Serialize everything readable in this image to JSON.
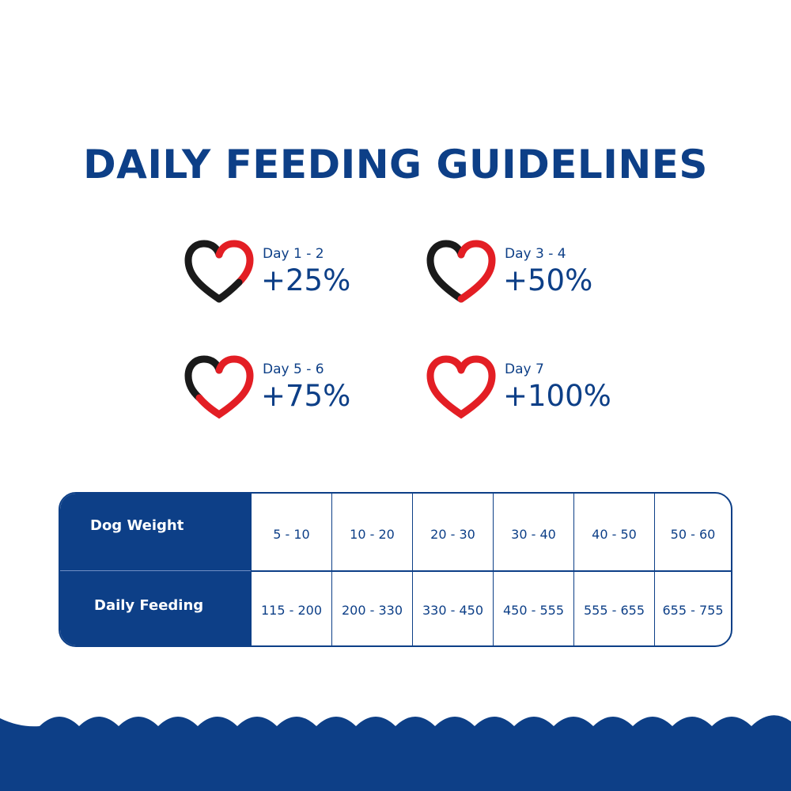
{
  "title": "DAILY FEEDING GUIDELINES",
  "colors": {
    "navy": "#0d3f87",
    "red": "#e31e24",
    "black": "#1a1a1a"
  },
  "steps": [
    {
      "day": "Day 1 - 2",
      "percent": "+25%",
      "red_fraction": 0.25
    },
    {
      "day": "Day 3 - 4",
      "percent": "+50%",
      "red_fraction": 0.5
    },
    {
      "day": "Day 5 - 6",
      "percent": "+75%",
      "red_fraction": 0.75
    },
    {
      "day": "Day 7",
      "percent": "+100%",
      "red_fraction": 1.0
    }
  ],
  "table": {
    "row_labels": {
      "weight": "Dog Weight",
      "feeding": "Daily Feeding"
    },
    "weights": [
      "5 - 10",
      "10 - 20",
      "20 - 30",
      "30 - 40",
      "40 - 50",
      "50 - 60"
    ],
    "feedings": [
      "115 - 200",
      "200 - 330",
      "330 - 450",
      "450 - 555",
      "555 - 655",
      "655 - 755"
    ]
  }
}
